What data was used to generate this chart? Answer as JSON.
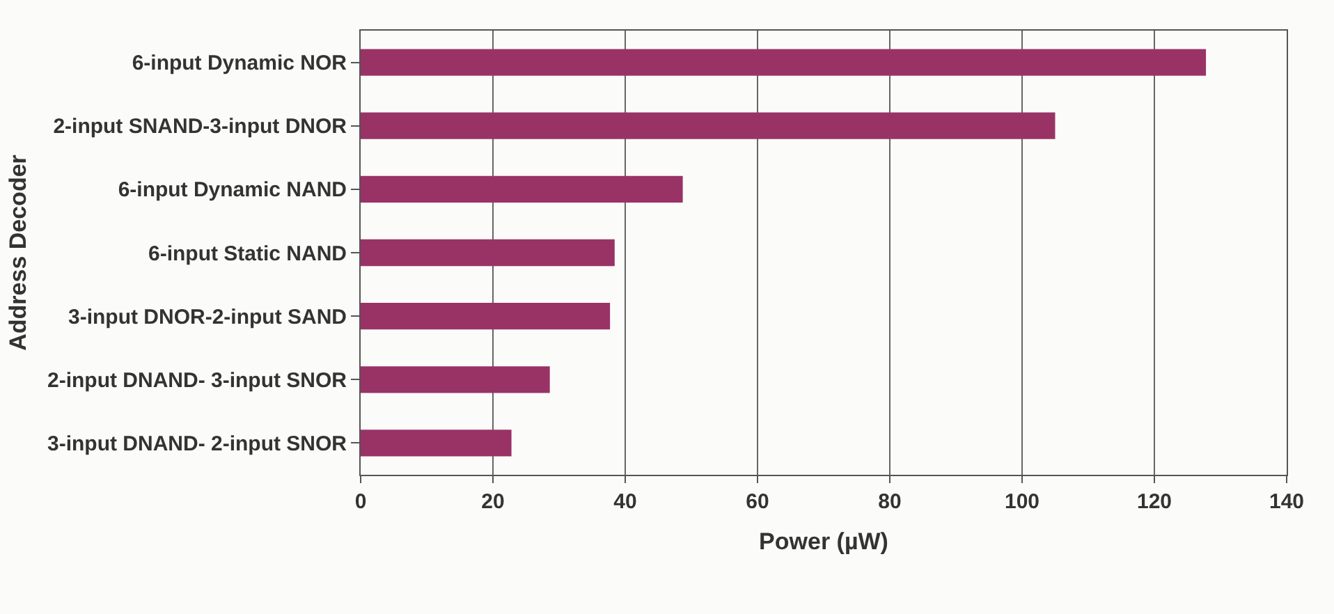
{
  "chart_data": {
    "type": "bar",
    "orientation": "horizontal",
    "xlabel": "Power (µW)",
    "ylabel": "Address Decoder",
    "categories": [
      "6-input Dynamic NOR",
      "2-input SNAND-3-input DNOR",
      "6-input Dynamic NAND",
      "6-input Static NAND",
      "3-input DNOR-2-input SAND",
      "2-input DNAND- 3-input SNOR",
      "3-input DNAND- 2-input SNOR"
    ],
    "values": [
      127.8,
      105,
      48.7,
      38.4,
      37.7,
      28.6,
      22.8
    ],
    "color": "#993366",
    "xlim": [
      0,
      140
    ],
    "xticks": [
      0,
      20,
      40,
      60,
      80,
      100,
      120,
      140
    ],
    "grid": "x"
  }
}
